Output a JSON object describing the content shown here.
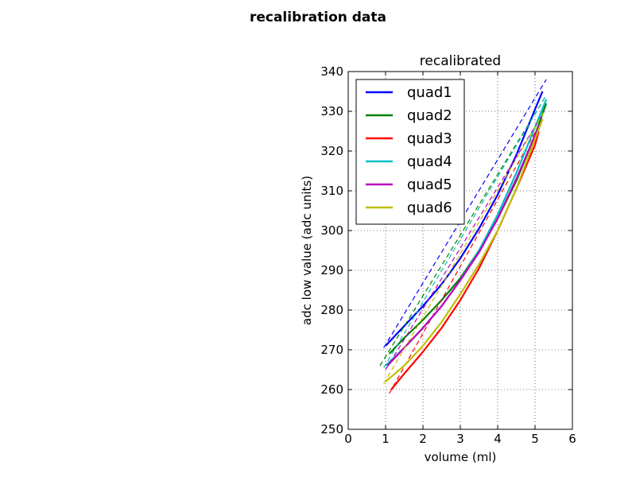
{
  "figure": {
    "suptitle": "recalibration data"
  },
  "chart_data": {
    "type": "line",
    "title": "recalibrated",
    "xlabel": "volume (ml)",
    "ylabel": "adc low value (adc units)",
    "xlim": [
      0,
      6
    ],
    "ylim": [
      250,
      340
    ],
    "xticks": [
      "0",
      "1",
      "2",
      "3",
      "4",
      "5",
      "6"
    ],
    "yticks": [
      "250",
      "260",
      "270",
      "280",
      "290",
      "300",
      "310",
      "320",
      "330",
      "340"
    ],
    "grid": true,
    "legend_position": "upper-left",
    "series": [
      {
        "name": "quad1",
        "color": "#0000ff",
        "x": [
          1.0,
          1.5,
          2.0,
          2.5,
          3.0,
          3.5,
          4.0,
          4.5,
          5.0,
          5.2
        ],
        "y": [
          271,
          276,
          281,
          286.5,
          293,
          300.5,
          309,
          319,
          330.5,
          335
        ],
        "fit_x": [
          0.95,
          5.3
        ],
        "fit_y": [
          270.5,
          338
        ]
      },
      {
        "name": "quad2",
        "color": "#008000",
        "x": [
          1.1,
          1.5,
          2.0,
          2.5,
          3.0,
          3.5,
          4.0,
          4.5,
          5.0,
          5.3
        ],
        "y": [
          269,
          273,
          277.5,
          282.5,
          288,
          295,
          303,
          312.5,
          324,
          332
        ],
        "fit_x": [
          0.85,
          5.3
        ],
        "fit_y": [
          266,
          334
        ]
      },
      {
        "name": "quad3",
        "color": "#ff0000",
        "x": [
          1.15,
          1.5,
          2.0,
          2.5,
          3.0,
          3.5,
          4.0,
          4.5,
          5.0,
          5.1
        ],
        "y": [
          260,
          264,
          269.5,
          275.5,
          282.5,
          290.5,
          300,
          310.5,
          321.5,
          325
        ],
        "fit_x": [
          1.1,
          5.2
        ],
        "fit_y": [
          259,
          328
        ]
      },
      {
        "name": "quad4",
        "color": "#00bfbf",
        "x": [
          1.0,
          1.5,
          2.0,
          2.5,
          3.0,
          3.5,
          4.0,
          4.5,
          5.0,
          5.3
        ],
        "y": [
          266,
          270.5,
          275.5,
          281,
          287.5,
          295,
          304,
          314.5,
          326,
          333
        ],
        "fit_x": [
          0.95,
          5.3
        ],
        "fit_y": [
          265.5,
          334
        ]
      },
      {
        "name": "quad5",
        "color": "#bf00bf",
        "x": [
          1.05,
          1.5,
          2.0,
          2.5,
          3.0,
          3.5,
          4.0,
          4.5,
          5.0,
          5.2
        ],
        "y": [
          266,
          270.5,
          275.5,
          281,
          287.5,
          294.5,
          303,
          313,
          324,
          328
        ],
        "fit_x": [
          1.0,
          5.25
        ],
        "fit_y": [
          265,
          330
        ]
      },
      {
        "name": "quad6",
        "color": "#bfbf00",
        "x": [
          1.0,
          1.5,
          2.0,
          2.5,
          3.0,
          3.5,
          4.0,
          4.5,
          5.0,
          5.2
        ],
        "y": [
          262,
          266,
          271,
          277,
          284,
          291.5,
          300,
          310.5,
          323,
          328
        ],
        "fit_x": [
          0.95,
          5.25
        ],
        "fit_y": [
          261.5,
          330
        ]
      }
    ]
  }
}
